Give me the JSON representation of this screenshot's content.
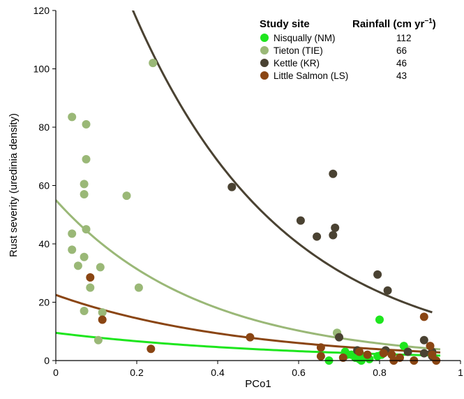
{
  "chart_data": {
    "type": "scatter",
    "title": "",
    "xlabel": "PCo1",
    "ylabel": "Rust severity (uredinia density)",
    "xlim": [
      0,
      1
    ],
    "ylim": [
      0,
      120
    ],
    "x_ticks": [
      "0",
      "0.2",
      "0.4",
      "0.6",
      "0.8",
      "1"
    ],
    "y_ticks": [
      "0",
      "20",
      "40",
      "60",
      "80",
      "100",
      "120"
    ],
    "grid": false,
    "legend": {
      "placement": "top-right",
      "header_site": "Study site",
      "header_rain": "Rainfall (cm yr",
      "header_rain_sup": "−1",
      "header_rain_close": ")"
    },
    "series": [
      {
        "name": "Nisqually (NM)",
        "rainfall": "112",
        "color": "#1ee61e",
        "points": [
          [
            0.675,
            0
          ],
          [
            0.695,
            9.5
          ],
          [
            0.715,
            3
          ],
          [
            0.72,
            2
          ],
          [
            0.73,
            2
          ],
          [
            0.74,
            1
          ],
          [
            0.745,
            2.5
          ],
          [
            0.75,
            0.5
          ],
          [
            0.755,
            0
          ],
          [
            0.76,
            1.5
          ],
          [
            0.775,
            0.5
          ],
          [
            0.795,
            1.5
          ],
          [
            0.8,
            14
          ],
          [
            0.805,
            2
          ],
          [
            0.86,
            5
          ]
        ],
        "fit": {
          "a": 9.5,
          "b": 1.8
        }
      },
      {
        "name": "Tieton (TIE)",
        "rainfall": "66",
        "color": "#9ab877",
        "points": [
          [
            0.04,
            83.5
          ],
          [
            0.075,
            81
          ],
          [
            0.24,
            102
          ],
          [
            0.075,
            69
          ],
          [
            0.07,
            60.5
          ],
          [
            0.07,
            57
          ],
          [
            0.175,
            56.5
          ],
          [
            0.075,
            45
          ],
          [
            0.04,
            43.5
          ],
          [
            0.04,
            38
          ],
          [
            0.07,
            35.5
          ],
          [
            0.055,
            32.5
          ],
          [
            0.11,
            32
          ],
          [
            0.085,
            25
          ],
          [
            0.205,
            25
          ],
          [
            0.07,
            17
          ],
          [
            0.115,
            16.5
          ],
          [
            0.105,
            7
          ],
          [
            0.695,
            9.5
          ]
        ],
        "fit": {
          "a": 55,
          "b": 2.8
        }
      },
      {
        "name": "Kettle  (KR)",
        "rainfall": "46",
        "color": "#4a4232",
        "points": [
          [
            0.435,
            59.5
          ],
          [
            0.685,
            64
          ],
          [
            0.605,
            48
          ],
          [
            0.69,
            45.5
          ],
          [
            0.685,
            43
          ],
          [
            0.645,
            42.5
          ],
          [
            0.7,
            8
          ],
          [
            0.795,
            29.5
          ],
          [
            0.82,
            24
          ],
          [
            0.91,
            7
          ],
          [
            0.745,
            3.5
          ],
          [
            0.815,
            3.5
          ],
          [
            0.87,
            3
          ],
          [
            0.91,
            2.5
          ],
          [
            0.93,
            1.5
          ],
          [
            0.93,
            3
          ]
        ],
        "fit": {
          "a": 200,
          "b": 2.68,
          "xmin": 0.1,
          "xmax": 0.93
        }
      },
      {
        "name": "Little Salmon (LS)",
        "rainfall": "43",
        "color": "#8a4513",
        "points": [
          [
            0.085,
            28.5
          ],
          [
            0.115,
            14
          ],
          [
            0.235,
            4
          ],
          [
            0.48,
            8
          ],
          [
            0.655,
            4.5
          ],
          [
            0.655,
            1.5
          ],
          [
            0.71,
            1
          ],
          [
            0.75,
            3
          ],
          [
            0.77,
            2
          ],
          [
            0.81,
            2.5
          ],
          [
            0.83,
            2
          ],
          [
            0.835,
            0
          ],
          [
            0.85,
            1
          ],
          [
            0.885,
            0
          ],
          [
            0.91,
            15
          ],
          [
            0.925,
            5
          ],
          [
            0.93,
            2
          ],
          [
            0.94,
            0
          ]
        ],
        "fit": {
          "a": 22.5,
          "b": 2.2
        }
      }
    ]
  }
}
